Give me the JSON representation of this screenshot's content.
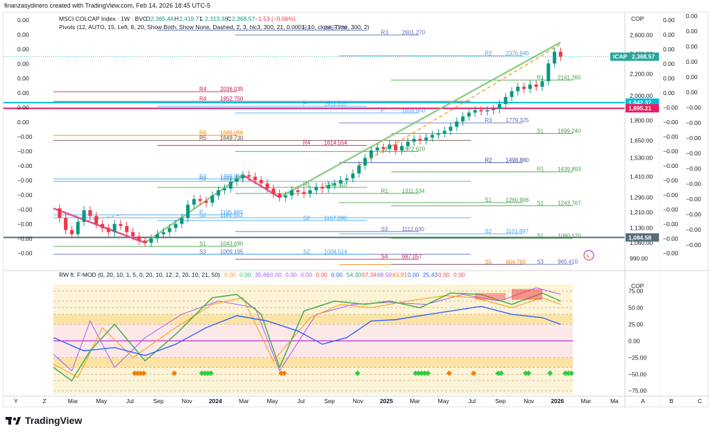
{
  "caption": "finanzasydinero created with TradingView.com, Feb 14, 2026 18:45 UTC-5",
  "brand": "TradingView",
  "legend": {
    "symbol": "MSCI COLCAP Index · 1W · BVC",
    "o_label": "O",
    "o": "2,365.46",
    "h_label": "H",
    "h": "2,419.77",
    "l_label": "L",
    "l": "2,313.38",
    "c_label": "C",
    "c": "2,368.57",
    "change": "−1.53 (−0.06%)",
    "pivots": "Pivots (12, AUTO, 15, Left, 8, 20, Show Both, Show None, Dashed, 2, 3, hlc3, 300, 21, 0.0001, 10, close, Time, 300, 2)",
    "osc": "RW ft. F-MOD (0, 20, 10, 1, 5, 0, 20, 10, 12, 2, 20, 10, 21, 50)",
    "osc_values": [
      "0.00",
      "0.00",
      "35.69",
      "0.00",
      "0.00",
      "0.00",
      "0.00",
      "0.00",
      "54.30",
      "57.34",
      "68.59",
      "63.91",
      "0.00",
      "25.43",
      "0.00",
      "0.00"
    ],
    "osc_colors": [
      "#f59e0b",
      "#22c55e",
      "#a855f7",
      "#a855f7",
      "#a855f7",
      "#a855f7",
      "#ef4444",
      "#2563eb",
      "#22a06b",
      "#ef4444",
      "#a855f7",
      "#f97316",
      "#2563eb",
      "#2563eb",
      "#ef4444",
      "#ef4444"
    ]
  },
  "left_axis": [
    "0.00",
    "0.00",
    "0.00",
    "0.00",
    "0.00",
    "0.00",
    "0.00",
    "0.00",
    "−0.00",
    "−0.00",
    "−0.00",
    "−0.00",
    "−0.00",
    "−0.00",
    "−0.00",
    "−0.00",
    "−0.00"
  ],
  "right_axis2": [
    "0.00",
    "0.00",
    "0.00",
    "0.00",
    "0.00",
    "0.00",
    "−0.00",
    "−0.00",
    "−0.00",
    "−0.00",
    "−0.00",
    "−0.00",
    "−0.00",
    "−0.00",
    "−0.00",
    "−0.00",
    "−0.00"
  ],
  "right_axis3": [
    "0.00",
    "0.00",
    "0.00",
    "0.00",
    "0.00",
    "0.00",
    "−0.00",
    "−0.00",
    "−0.00",
    "−0.00",
    "−0.00",
    "−0.00",
    "−0.00",
    "−0.00",
    "−0.00",
    "−0.00"
  ],
  "chart_data": {
    "type": "candlestick",
    "currency": "COP",
    "x_ticks": [
      "Y",
      "Z",
      "Mar",
      "May",
      "Jul",
      "Sep",
      "Nov",
      "2024",
      "Mar",
      "May",
      "Jul",
      "Sep",
      "Nov",
      "2025",
      "Mar",
      "May",
      "Jul",
      "Sep",
      "Nov",
      "2026",
      "Mar",
      "Ma",
      "A",
      "B",
      "C"
    ],
    "price_ticks": [
      "2,600.00",
      "2,400.00",
      "2,200.00",
      "2,000.00",
      "1,800.00",
      "1,650.00",
      "1,530.00",
      "1,410.00",
      "1,290.00",
      "1,210.00",
      "1,130.00",
      "1,060.00",
      "990.00"
    ],
    "price_range": [
      960,
      2700
    ],
    "price_scale": "log",
    "last_price": {
      "symbol": "ICAP",
      "value": "2,368.57",
      "color": "#26a69a"
    },
    "markers": [
      {
        "value": "1,942.37",
        "color": "#00bcd4"
      },
      {
        "value": "1,895.21",
        "color": "#e91e63"
      },
      {
        "value": "1,084.58",
        "color": "#546e7a"
      }
    ],
    "close_points": [
      [
        0,
        1230
      ],
      [
        2,
        1180
      ],
      [
        4,
        1120
      ],
      [
        6,
        1100
      ],
      [
        8,
        1160
      ],
      [
        10,
        1220
      ],
      [
        12,
        1190
      ],
      [
        14,
        1150
      ],
      [
        16,
        1130
      ],
      [
        18,
        1110
      ],
      [
        20,
        1150
      ],
      [
        22,
        1140
      ],
      [
        24,
        1110
      ],
      [
        26,
        1090
      ],
      [
        28,
        1070
      ],
      [
        30,
        1060
      ],
      [
        32,
        1080
      ],
      [
        34,
        1100
      ],
      [
        36,
        1110
      ],
      [
        38,
        1130
      ],
      [
        40,
        1150
      ],
      [
        42,
        1180
      ],
      [
        44,
        1250
      ],
      [
        46,
        1280
      ],
      [
        48,
        1270
      ],
      [
        50,
        1260
      ],
      [
        52,
        1300
      ],
      [
        54,
        1330
      ],
      [
        56,
        1340
      ],
      [
        58,
        1380
      ],
      [
        60,
        1400
      ],
      [
        62,
        1420
      ],
      [
        64,
        1410
      ],
      [
        66,
        1390
      ],
      [
        68,
        1370
      ],
      [
        70,
        1340
      ],
      [
        72,
        1310
      ],
      [
        74,
        1290
      ],
      [
        76,
        1300
      ],
      [
        78,
        1330
      ],
      [
        80,
        1320
      ],
      [
        82,
        1310
      ],
      [
        84,
        1330
      ],
      [
        86,
        1350
      ],
      [
        88,
        1340
      ],
      [
        90,
        1360
      ],
      [
        92,
        1370
      ],
      [
        94,
        1390
      ],
      [
        96,
        1400
      ],
      [
        98,
        1430
      ],
      [
        100,
        1480
      ],
      [
        102,
        1530
      ],
      [
        104,
        1580
      ],
      [
        106,
        1600
      ],
      [
        108,
        1590
      ],
      [
        110,
        1620
      ],
      [
        112,
        1580
      ],
      [
        114,
        1610
      ],
      [
        116,
        1640
      ],
      [
        118,
        1660
      ],
      [
        120,
        1650
      ],
      [
        122,
        1670
      ],
      [
        124,
        1690
      ],
      [
        126,
        1700
      ],
      [
        128,
        1720
      ],
      [
        130,
        1750
      ],
      [
        132,
        1790
      ],
      [
        134,
        1830
      ],
      [
        136,
        1860
      ],
      [
        138,
        1880
      ],
      [
        140,
        1870
      ],
      [
        142,
        1880
      ],
      [
        144,
        1890
      ],
      [
        146,
        1930
      ],
      [
        148,
        1990
      ],
      [
        150,
        2040
      ],
      [
        152,
        2080
      ],
      [
        154,
        2060
      ],
      [
        156,
        2100
      ],
      [
        158,
        2080
      ],
      [
        160,
        2130
      ],
      [
        162,
        2300
      ],
      [
        164,
        2420
      ],
      [
        166,
        2368.57
      ]
    ],
    "pivot_levels": [
      {
        "label": "R3",
        "value": "2655.730",
        "color": "#5c6bc0"
      },
      {
        "label": "R3",
        "value": "2601.270",
        "color": "#5c6bc0"
      },
      {
        "label": "R2",
        "value": "2376.940",
        "color": "#5c9bd5"
      },
      {
        "label": "R1",
        "value": "2141.280",
        "color": "#43a047"
      },
      {
        "label": "R4",
        "value": "2036.035",
        "color": "#c2185b"
      },
      {
        "label": "R4",
        "value": "1952.750",
        "color": "#c2185b"
      },
      {
        "label": "P",
        "value": "1911.310",
        "color": "#42a5f5"
      },
      {
        "label": "P",
        "value": "1856.950",
        "color": "#42a5f5"
      },
      {
        "label": "R3",
        "value": "1779.325",
        "color": "#5c6bc0"
      },
      {
        "label": "S1",
        "value": "1699.240",
        "color": "#43a047"
      },
      {
        "label": "R6",
        "value": "1686.066",
        "color": "#f57c00"
      },
      {
        "label": "R5",
        "value": "1649.730",
        "color": "#6d4c41"
      },
      {
        "label": "R4",
        "value": "1614.554",
        "color": "#c2185b"
      },
      {
        "label": "S1",
        "value": "1572.620",
        "color": "#43a047"
      },
      {
        "label": "R2",
        "value": "1498.880",
        "color": "#3949ab"
      },
      {
        "label": "R1",
        "value": "1439.893",
        "color": "#43a047"
      },
      {
        "label": "S2",
        "value": "1396.960",
        "color": "#42a5f5"
      },
      {
        "label": "R2",
        "value": "1383.046",
        "color": "#5c9bd5"
      },
      {
        "label": "R1",
        "value": "1346.710",
        "color": "#43a047"
      },
      {
        "label": "R1",
        "value": "1311.534",
        "color": "#43a047"
      },
      {
        "label": "S1",
        "value": "1260.906",
        "color": "#43a047"
      },
      {
        "label": "S1",
        "value": "1243.767",
        "color": "#43a047"
      },
      {
        "label": "P",
        "value": "1195.880",
        "color": "#42a5f5"
      },
      {
        "label": "S2",
        "value": "1181.183",
        "color": "#42a5f5"
      },
      {
        "label": "S2",
        "value": "1167.090",
        "color": "#42a5f5"
      },
      {
        "label": "S3",
        "value": "1112.630",
        "color": "#5c6bc0"
      },
      {
        "label": "S2",
        "value": "1101.897",
        "color": "#42a5f5"
      },
      {
        "label": "S1",
        "value": "1080.120",
        "color": "#43a047"
      },
      {
        "label": "S1",
        "value": "1043.690",
        "color": "#43a047"
      },
      {
        "label": "S3",
        "value": "1009.195",
        "color": "#5c6bc0"
      },
      {
        "label": "S2",
        "value": "1008.514",
        "color": "#42a5f5"
      },
      {
        "label": "S4",
        "value": "987.057",
        "color": "#c2185b"
      },
      {
        "label": "S5",
        "value": "964.765",
        "color": "#f57c00"
      },
      {
        "label": "S3",
        "value": "965.410",
        "color": "#5c6bc0"
      }
    ],
    "oscillator": {
      "ticks": [
        "75.00",
        "50.00",
        "25.00",
        "0.00",
        "−25.00",
        "−50.00",
        "−75.00"
      ],
      "range": [
        -80,
        85
      ],
      "currency": "COP",
      "blue_line": [
        [
          0,
          5
        ],
        [
          10,
          -15
        ],
        [
          20,
          -10
        ],
        [
          30,
          -22
        ],
        [
          40,
          -5
        ],
        [
          50,
          20
        ],
        [
          60,
          38
        ],
        [
          70,
          30
        ],
        [
          80,
          15
        ],
        [
          88,
          -5
        ],
        [
          96,
          5
        ],
        [
          104,
          30
        ],
        [
          112,
          32
        ],
        [
          120,
          38
        ],
        [
          130,
          45
        ],
        [
          140,
          52
        ],
        [
          150,
          40
        ],
        [
          160,
          35
        ],
        [
          166,
          25
        ]
      ],
      "green_line": [
        [
          0,
          -40
        ],
        [
          6,
          -60
        ],
        [
          12,
          -15
        ],
        [
          20,
          25
        ],
        [
          30,
          -30
        ],
        [
          40,
          10
        ],
        [
          52,
          65
        ],
        [
          60,
          70
        ],
        [
          68,
          40
        ],
        [
          74,
          -40
        ],
        [
          82,
          45
        ],
        [
          92,
          60
        ],
        [
          102,
          55
        ],
        [
          110,
          60
        ],
        [
          120,
          50
        ],
        [
          130,
          72
        ],
        [
          140,
          70
        ],
        [
          150,
          55
        ],
        [
          160,
          72
        ],
        [
          166,
          60
        ]
      ],
      "orange_line": [
        [
          0,
          -35
        ],
        [
          8,
          -55
        ],
        [
          16,
          20
        ],
        [
          26,
          -25
        ],
        [
          40,
          20
        ],
        [
          52,
          55
        ],
        [
          62,
          65
        ],
        [
          72,
          -30
        ],
        [
          84,
          35
        ],
        [
          94,
          55
        ],
        [
          104,
          50
        ],
        [
          116,
          60
        ],
        [
          128,
          68
        ],
        [
          138,
          65
        ],
        [
          150,
          50
        ],
        [
          160,
          65
        ],
        [
          166,
          55
        ]
      ],
      "purple_line": [
        [
          0,
          -20
        ],
        [
          6,
          -45
        ],
        [
          12,
          30
        ],
        [
          20,
          -40
        ],
        [
          30,
          5
        ],
        [
          42,
          40
        ],
        [
          54,
          60
        ],
        [
          66,
          50
        ],
        [
          74,
          -45
        ],
        [
          86,
          40
        ],
        [
          98,
          55
        ],
        [
          110,
          58
        ],
        [
          122,
          55
        ],
        [
          134,
          70
        ],
        [
          146,
          60
        ],
        [
          158,
          80
        ],
        [
          166,
          70
        ]
      ]
    }
  }
}
